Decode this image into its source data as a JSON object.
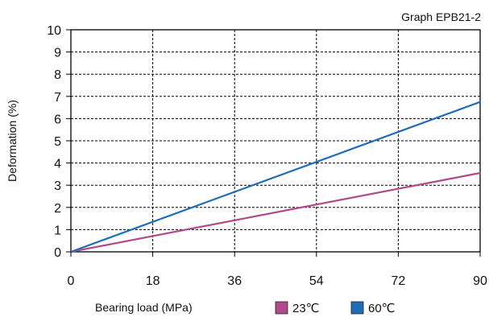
{
  "graph_label": "Graph EPB21-2",
  "chart_data": {
    "type": "line",
    "xlabel": "Bearing load (MPa)",
    "ylabel": "Deformation (%)",
    "xlim": [
      0,
      90
    ],
    "ylim": [
      0,
      10
    ],
    "x_ticks": [
      0,
      18,
      36,
      54,
      72,
      90
    ],
    "y_ticks": [
      0,
      1,
      2,
      3,
      4,
      5,
      6,
      7,
      8,
      9,
      10
    ],
    "x_tick_labels": [
      "0",
      "18",
      "36",
      "54",
      "72",
      "90"
    ],
    "y_tick_labels": [
      "0",
      "1",
      "2",
      "3",
      "4",
      "5",
      "6",
      "7",
      "8",
      "9",
      "10"
    ],
    "grid": true,
    "legend_position": "bottom",
    "series": [
      {
        "name": "23℃",
        "color": "#b04a8c",
        "x": [
          0,
          90
        ],
        "y": [
          0,
          3.55
        ]
      },
      {
        "name": "60℃",
        "color": "#1f6db5",
        "x": [
          0,
          90
        ],
        "y": [
          0,
          6.75
        ]
      }
    ]
  }
}
